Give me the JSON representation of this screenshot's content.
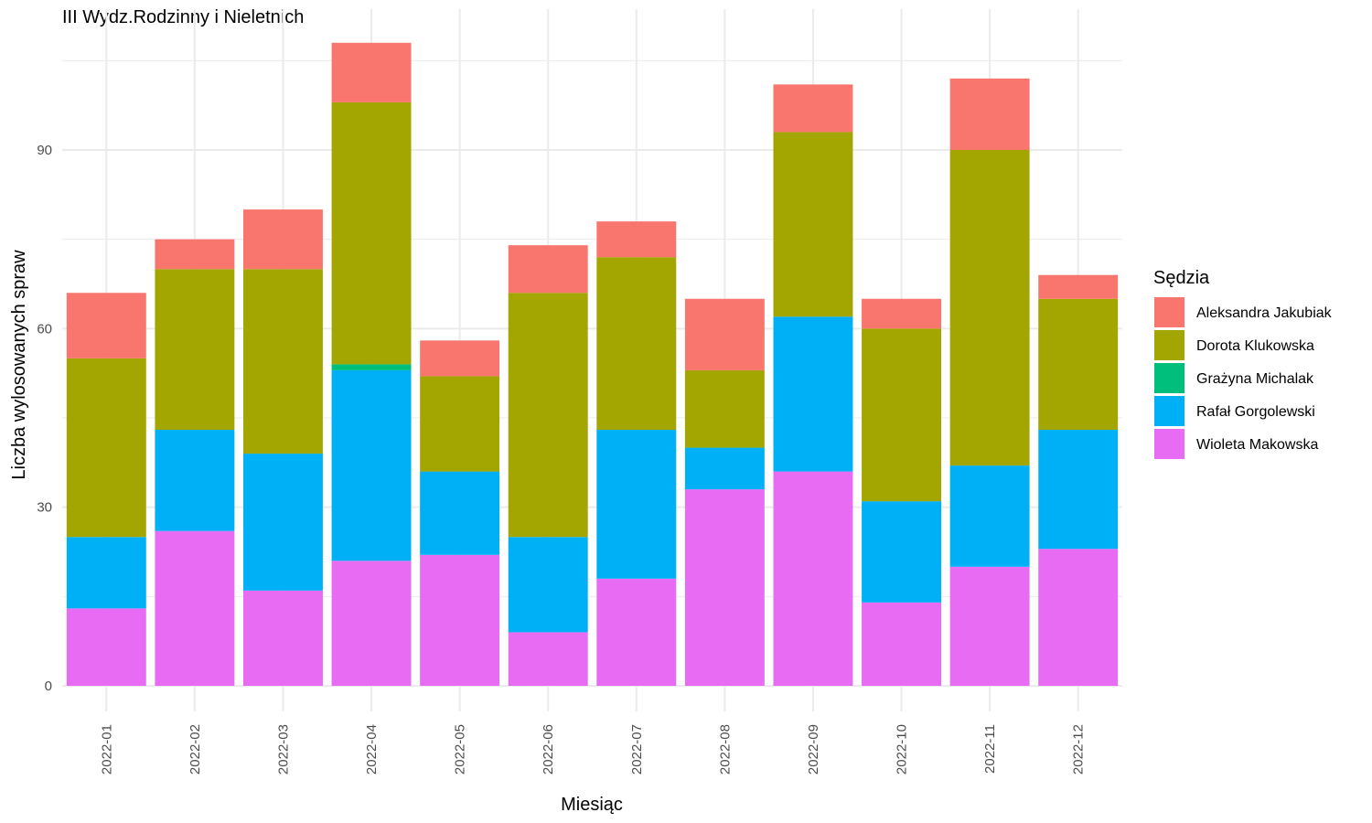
{
  "chart_data": {
    "type": "bar",
    "stacked": true,
    "title": "III Wydz.Rodzinny i Nieletnich",
    "xlabel": "Miesiąc",
    "ylabel": "Liczba wylosowanych spraw",
    "ylim": [
      0,
      110
    ],
    "yticks": [
      0,
      30,
      60,
      90
    ],
    "grid": true,
    "legend_position": "right",
    "legend_title": "Sędzia",
    "categories": [
      "2022-01",
      "2022-02",
      "2022-03",
      "2022-04",
      "2022-05",
      "2022-06",
      "2022-07",
      "2022-08",
      "2022-09",
      "2022-10",
      "2022-11",
      "2022-12"
    ],
    "series": [
      {
        "name": "Aleksandra Jakubiak",
        "color": "#F8766D",
        "values": [
          11,
          5,
          10,
          10,
          6,
          8,
          6,
          12,
          8,
          5,
          12,
          4
        ]
      },
      {
        "name": "Dorota Klukowska",
        "color": "#A3A500",
        "values": [
          30,
          27,
          31,
          44,
          16,
          41,
          29,
          13,
          31,
          29,
          53,
          22
        ]
      },
      {
        "name": "Grażyna Michalak",
        "color": "#00BF7D",
        "values": [
          0,
          0,
          0,
          1,
          0,
          0,
          0,
          0,
          0,
          0,
          0,
          0
        ]
      },
      {
        "name": "Rafał Gorgolewski",
        "color": "#00B0F6",
        "values": [
          12,
          17,
          23,
          32,
          14,
          16,
          25,
          7,
          26,
          17,
          17,
          20
        ]
      },
      {
        "name": "Wioleta Makowska",
        "color": "#E76BF3",
        "values": [
          13,
          26,
          16,
          21,
          22,
          9,
          18,
          33,
          36,
          14,
          20,
          23
        ]
      }
    ]
  }
}
